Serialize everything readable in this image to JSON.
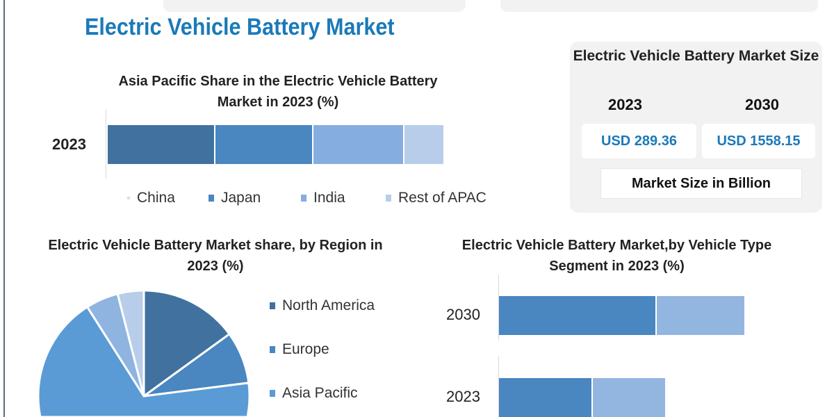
{
  "title": "Electric Vehicle Battery Market",
  "market_size": {
    "title": "Electric Vehicle Battery Market Size",
    "years": [
      "2023",
      "2030"
    ],
    "values": [
      "USD 289.36",
      "USD 1558.15"
    ],
    "note": "Market Size in Billion"
  },
  "chart_data": [
    {
      "type": "bar",
      "stacked": true,
      "orientation": "horizontal",
      "title": "Asia Pacific Share in the Electric Vehicle Battery Market in 2023 (%)",
      "categories": [
        "2023"
      ],
      "series": [
        {
          "name": "China",
          "values": [
            32
          ],
          "color": "#41729f"
        },
        {
          "name": "Japan",
          "values": [
            29
          ],
          "color": "#4a86c0"
        },
        {
          "name": "India",
          "values": [
            27
          ],
          "color": "#86ade0"
        },
        {
          "name": "Rest of APAC",
          "values": [
            12
          ],
          "color": "#b8cde9"
        }
      ],
      "legend": "bottom"
    },
    {
      "type": "pie",
      "title": "Electric Vehicle Battery Market share, by Region in 2023  (%)",
      "slices": [
        {
          "name": "North America",
          "value": 15,
          "color": "#41729f"
        },
        {
          "name": "Europe",
          "value": 8,
          "color": "#4a86c0"
        },
        {
          "name": "Asia Pacific",
          "value": 68,
          "color": "#5b9bd5"
        },
        {
          "value": 5,
          "color": "#8fb4e0"
        },
        {
          "value": 4,
          "color": "#b8cde9"
        }
      ],
      "legend": "right"
    },
    {
      "type": "bar",
      "stacked": true,
      "orientation": "horizontal",
      "title": "Electric Vehicle Battery Market,by Vehicle Type Segment in 2023 (%)",
      "categories": [
        "2030",
        "2023"
      ],
      "series": [
        {
          "values": [
            64,
            38
          ],
          "color": "#4a86c0"
        },
        {
          "values": [
            36,
            30
          ],
          "color": "#93b6e0"
        }
      ]
    }
  ]
}
